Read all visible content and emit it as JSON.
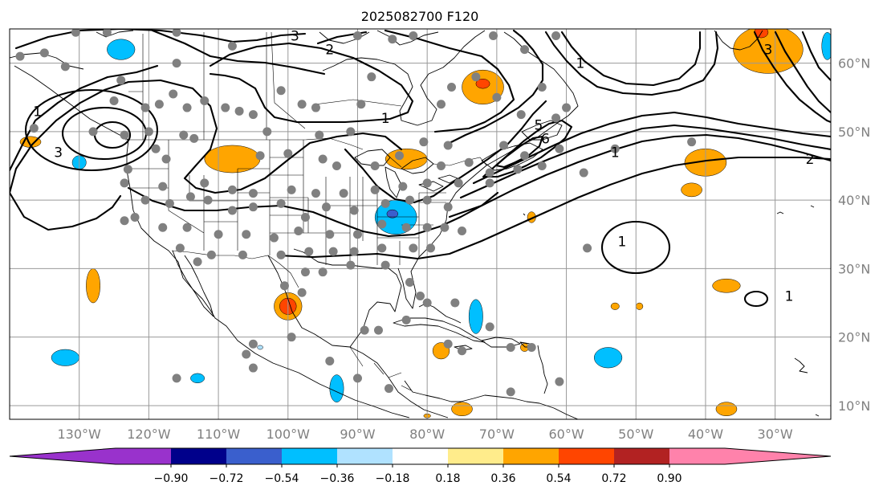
{
  "title": "2025082700 F120",
  "map": {
    "lon_range": [
      -140,
      -22
    ],
    "lat_range": [
      8,
      65
    ],
    "projection": "PlateCarree",
    "gridlines": true,
    "lon_ticks": [
      {
        "value": -130,
        "label": "130°W"
      },
      {
        "value": -120,
        "label": "120°W"
      },
      {
        "value": -110,
        "label": "110°W"
      },
      {
        "value": -100,
        "label": "100°W"
      },
      {
        "value": -90,
        "label": "90°W"
      },
      {
        "value": -80,
        "label": "80°W"
      },
      {
        "value": -70,
        "label": "70°W"
      },
      {
        "value": -60,
        "label": "60°W"
      },
      {
        "value": -50,
        "label": "50°W"
      },
      {
        "value": -40,
        "label": "40°W"
      },
      {
        "value": -30,
        "label": "30°W"
      }
    ],
    "lat_ticks": [
      {
        "value": 60,
        "label": "60°N"
      },
      {
        "value": 50,
        "label": "50°N"
      },
      {
        "value": 40,
        "label": "40°N"
      },
      {
        "value": 30,
        "label": "30°N"
      },
      {
        "value": 20,
        "label": "20°N"
      },
      {
        "value": 10,
        "label": "10°N"
      }
    ],
    "contour_labels": [
      {
        "text": "3",
        "lon": -99,
        "lat": 64
      },
      {
        "text": "2",
        "lon": -94,
        "lat": 62
      },
      {
        "text": "1",
        "lon": -136,
        "lat": 53
      },
      {
        "text": "3",
        "lon": -133,
        "lat": 47
      },
      {
        "text": "1",
        "lon": -86,
        "lat": 52
      },
      {
        "text": "1",
        "lon": -58,
        "lat": 60
      },
      {
        "text": "5",
        "lon": -64,
        "lat": 51
      },
      {
        "text": "6",
        "lon": -63,
        "lat": 49
      },
      {
        "text": "1",
        "lon": -53,
        "lat": 47
      },
      {
        "text": "3",
        "lon": -31,
        "lat": 62
      },
      {
        "text": "2",
        "lon": -25,
        "lat": 46
      },
      {
        "text": "1",
        "lon": -52,
        "lat": 34
      },
      {
        "text": "1",
        "lon": -28,
        "lat": 26
      }
    ]
  },
  "colorbar": {
    "extend": "both",
    "colors": [
      "#9932cc",
      "#9932cc",
      "#00008b",
      "#3a5fcd",
      "#00bfff",
      "#b0e2ff",
      "#ffffff",
      "#ffec8b",
      "#ffa500",
      "#ff4500",
      "#b22222",
      "#ff82ab",
      "#ff82ab"
    ],
    "tick_labels": [
      "−0.90",
      "−0.72",
      "−0.54",
      "−0.36",
      "−0.18",
      "0.18",
      "0.36",
      "0.54",
      "0.72",
      "0.90"
    ]
  },
  "chart_data": {
    "type": "heatmap",
    "title": "2025082700 F120",
    "levels": [
      -0.9,
      -0.72,
      -0.54,
      -0.36,
      -0.18,
      0.18,
      0.36,
      0.54,
      0.72,
      0.9
    ],
    "xlabel": "",
    "ylabel": "",
    "xlim": [
      -140,
      -22
    ],
    "ylim": [
      8,
      65
    ],
    "shaded_regions": [
      {
        "lon": -124,
        "lat": 62,
        "rx": 2,
        "ry": 1.5,
        "color": "#00bfff"
      },
      {
        "lon": -137,
        "lat": 48.5,
        "rx": 1.5,
        "ry": 0.8,
        "color": "#ffa500"
      },
      {
        "lon": -130,
        "lat": 45.5,
        "rx": 1,
        "ry": 1,
        "color": "#00bfff"
      },
      {
        "lon": -108,
        "lat": 46,
        "rx": 4,
        "ry": 2,
        "color": "#ffa500"
      },
      {
        "lon": -72,
        "lat": 56.5,
        "rx": 3,
        "ry": 2.5,
        "color": "#ffa500"
      },
      {
        "lon": -72,
        "lat": 57,
        "rx": 1,
        "ry": 0.7,
        "color": "#ff4500"
      },
      {
        "lon": -83,
        "lat": 46,
        "rx": 3,
        "ry": 1.5,
        "color": "#ffa500"
      },
      {
        "lon": -84.5,
        "lat": 37.5,
        "rx": 3,
        "ry": 2.5,
        "color": "#00bfff"
      },
      {
        "lon": -85,
        "lat": 38,
        "rx": 0.8,
        "ry": 0.6,
        "color": "#3a5fcd"
      },
      {
        "lon": -31,
        "lat": 62,
        "rx": 5,
        "ry": 3.5,
        "color": "#ffa500"
      },
      {
        "lon": -32,
        "lat": 64.5,
        "rx": 1,
        "ry": 0.8,
        "color": "#ff4500"
      },
      {
        "lon": -22.5,
        "lat": 62.5,
        "rx": 0.8,
        "ry": 2,
        "color": "#00bfff"
      },
      {
        "lon": -40,
        "lat": 45.5,
        "rx": 3,
        "ry": 2,
        "color": "#ffa500"
      },
      {
        "lon": -42,
        "lat": 41.5,
        "rx": 1.5,
        "ry": 1,
        "color": "#ffa500"
      },
      {
        "lon": -65,
        "lat": 37.5,
        "rx": 0.6,
        "ry": 0.8,
        "color": "#ffa500"
      },
      {
        "lon": -128,
        "lat": 27.5,
        "rx": 1,
        "ry": 2.5,
        "color": "#ffa500"
      },
      {
        "lon": -100,
        "lat": 24.5,
        "rx": 2,
        "ry": 2,
        "color": "#ffa500"
      },
      {
        "lon": -100,
        "lat": 24.5,
        "rx": 1.2,
        "ry": 1.2,
        "color": "#ff4500"
      },
      {
        "lon": -73,
        "lat": 23,
        "rx": 1,
        "ry": 2.5,
        "color": "#00bfff"
      },
      {
        "lon": -53,
        "lat": 24.5,
        "rx": 0.6,
        "ry": 0.5,
        "color": "#ffa500"
      },
      {
        "lon": -37,
        "lat": 27.5,
        "rx": 2,
        "ry": 1,
        "color": "#ffa500"
      },
      {
        "lon": -132,
        "lat": 17,
        "rx": 2,
        "ry": 1.2,
        "color": "#00bfff"
      },
      {
        "lon": -54,
        "lat": 17,
        "rx": 2,
        "ry": 1.5,
        "color": "#00bfff"
      },
      {
        "lon": -78,
        "lat": 18,
        "rx": 1.2,
        "ry": 1.2,
        "color": "#ffa500"
      },
      {
        "lon": -66,
        "lat": 18.5,
        "rx": 0.6,
        "ry": 0.6,
        "color": "#ffa500"
      },
      {
        "lon": -113,
        "lat": 14,
        "rx": 1,
        "ry": 0.7,
        "color": "#00bfff"
      },
      {
        "lon": -93,
        "lat": 12.5,
        "rx": 1,
        "ry": 2,
        "color": "#00bfff"
      },
      {
        "lon": -104,
        "lat": 18.5,
        "rx": 0.4,
        "ry": 0.3,
        "color": "#b0e2ff"
      },
      {
        "lon": -75,
        "lat": 9.5,
        "rx": 1.5,
        "ry": 1,
        "color": "#ffa500"
      },
      {
        "lon": -80,
        "lat": 8.5,
        "rx": 0.5,
        "ry": 0.3,
        "color": "#ffa500"
      },
      {
        "lon": -37,
        "lat": 9.5,
        "rx": 1.5,
        "ry": 1,
        "color": "#ffa500"
      },
      {
        "lon": -49.5,
        "lat": 24.5,
        "rx": 0.5,
        "ry": 0.5,
        "color": "#ffa500"
      }
    ],
    "stations": [
      [
        -138.5,
        61
      ],
      [
        -135,
        61.5
      ],
      [
        -130.5,
        64.5
      ],
      [
        -126,
        64.5
      ],
      [
        -116,
        64.5
      ],
      [
        -108,
        62.5
      ],
      [
        -90,
        64
      ],
      [
        -82,
        64
      ],
      [
        -70.5,
        64
      ],
      [
        -85,
        63.5
      ],
      [
        -61.5,
        64
      ],
      [
        -66,
        62
      ],
      [
        -132,
        59.5
      ],
      [
        -116,
        60
      ],
      [
        -124,
        57.5
      ],
      [
        -101,
        56
      ],
      [
        -88,
        58
      ],
      [
        -73,
        58
      ],
      [
        -76.5,
        56.5
      ],
      [
        -63.5,
        56.5
      ],
      [
        -125,
        54.5
      ],
      [
        -116.5,
        55.5
      ],
      [
        -120.5,
        53.5
      ],
      [
        -118.5,
        54
      ],
      [
        -114.5,
        53.5
      ],
      [
        -112,
        54.5
      ],
      [
        -109,
        53.5
      ],
      [
        -107,
        53
      ],
      [
        -105,
        52.5
      ],
      [
        -98,
        54
      ],
      [
        -96,
        53.5
      ],
      [
        -89.5,
        54
      ],
      [
        -78,
        54
      ],
      [
        -70,
        55
      ],
      [
        -66.5,
        52.5
      ],
      [
        -61.5,
        52
      ],
      [
        -60,
        53.5
      ],
      [
        -136.5,
        50.5
      ],
      [
        -128,
        50
      ],
      [
        -123.5,
        49.5
      ],
      [
        -120,
        50
      ],
      [
        -115,
        49.5
      ],
      [
        -113.5,
        49
      ],
      [
        -103,
        50
      ],
      [
        -95.5,
        49.5
      ],
      [
        -91,
        50
      ],
      [
        -80.5,
        48.5
      ],
      [
        -77,
        48
      ],
      [
        -69,
        48
      ],
      [
        -66,
        46.5
      ],
      [
        -61,
        47.5
      ],
      [
        -53,
        47.5
      ],
      [
        -42,
        48.5
      ],
      [
        -119,
        47.5
      ],
      [
        -117.5,
        46
      ],
      [
        -104,
        46.5
      ],
      [
        -100,
        46.8
      ],
      [
        -95,
        46
      ],
      [
        -93,
        45
      ],
      [
        -87.5,
        45
      ],
      [
        -84,
        46.5
      ],
      [
        -78,
        45
      ],
      [
        -74,
        45.5
      ],
      [
        -71,
        44
      ],
      [
        -67,
        44.5
      ],
      [
        -63.5,
        45
      ],
      [
        -57.5,
        44
      ],
      [
        -123,
        44.5
      ],
      [
        -123.5,
        42.5
      ],
      [
        -118,
        42
      ],
      [
        -112,
        42.5
      ],
      [
        -108,
        41.5
      ],
      [
        -105,
        41
      ],
      [
        -99.5,
        41.5
      ],
      [
        -96,
        41
      ],
      [
        -92,
        41
      ],
      [
        -87.5,
        41.5
      ],
      [
        -83.5,
        42
      ],
      [
        -80,
        42.5
      ],
      [
        -75.5,
        42.5
      ],
      [
        -71,
        42.5
      ],
      [
        -122,
        37.5
      ],
      [
        -120.5,
        40
      ],
      [
        -117,
        39.5
      ],
      [
        -114,
        40.5
      ],
      [
        -111.5,
        40
      ],
      [
        -108,
        38.5
      ],
      [
        -105,
        39
      ],
      [
        -101,
        39.5
      ],
      [
        -97.5,
        37.5
      ],
      [
        -94.5,
        39
      ],
      [
        -90.5,
        38.5
      ],
      [
        -86,
        39.5
      ],
      [
        -82.5,
        40
      ],
      [
        -80,
        40
      ],
      [
        -77,
        39
      ],
      [
        -123.5,
        37
      ],
      [
        -118,
        36
      ],
      [
        -114.5,
        36
      ],
      [
        -110,
        35
      ],
      [
        -106,
        35
      ],
      [
        -102,
        34.5
      ],
      [
        -98.5,
        35.5
      ],
      [
        -94,
        35
      ],
      [
        -90,
        35
      ],
      [
        -86.5,
        36.5
      ],
      [
        -83,
        36
      ],
      [
        -80,
        36
      ],
      [
        -77.5,
        36
      ],
      [
        -115.5,
        33
      ],
      [
        -111,
        32
      ],
      [
        -106.5,
        32
      ],
      [
        -101,
        32
      ],
      [
        -97,
        32.5
      ],
      [
        -93.5,
        32.5
      ],
      [
        -90.5,
        32.5
      ],
      [
        -86.5,
        33
      ],
      [
        -82,
        33
      ],
      [
        -79.5,
        33
      ],
      [
        -75,
        35.5
      ],
      [
        -113,
        31
      ],
      [
        -97.5,
        29.5
      ],
      [
        -95,
        29.5
      ],
      [
        -91,
        30.5
      ],
      [
        -86,
        30.5
      ],
      [
        -82.5,
        28
      ],
      [
        -81,
        26
      ],
      [
        -80,
        25
      ],
      [
        -76,
        25
      ],
      [
        -71,
        21.5
      ],
      [
        -98,
        26.5
      ],
      [
        -100.5,
        27.5
      ],
      [
        -77,
        19
      ],
      [
        -75,
        18
      ],
      [
        -68,
        18.5
      ],
      [
        -65,
        18.5
      ],
      [
        -57,
        33
      ],
      [
        -105,
        19
      ],
      [
        -106,
        17.5
      ],
      [
        -99.5,
        20
      ],
      [
        -89,
        21
      ],
      [
        -87,
        21
      ],
      [
        -83,
        22.5
      ],
      [
        -116,
        14
      ],
      [
        -105,
        15.5
      ],
      [
        -94,
        16.5
      ],
      [
        -90,
        14
      ],
      [
        -85.5,
        12.5
      ],
      [
        -68,
        12
      ],
      [
        -61,
        13.5
      ]
    ],
    "contours": "mean sea level pressure anomaly contours (black lines) over North America and the North Atlantic"
  }
}
